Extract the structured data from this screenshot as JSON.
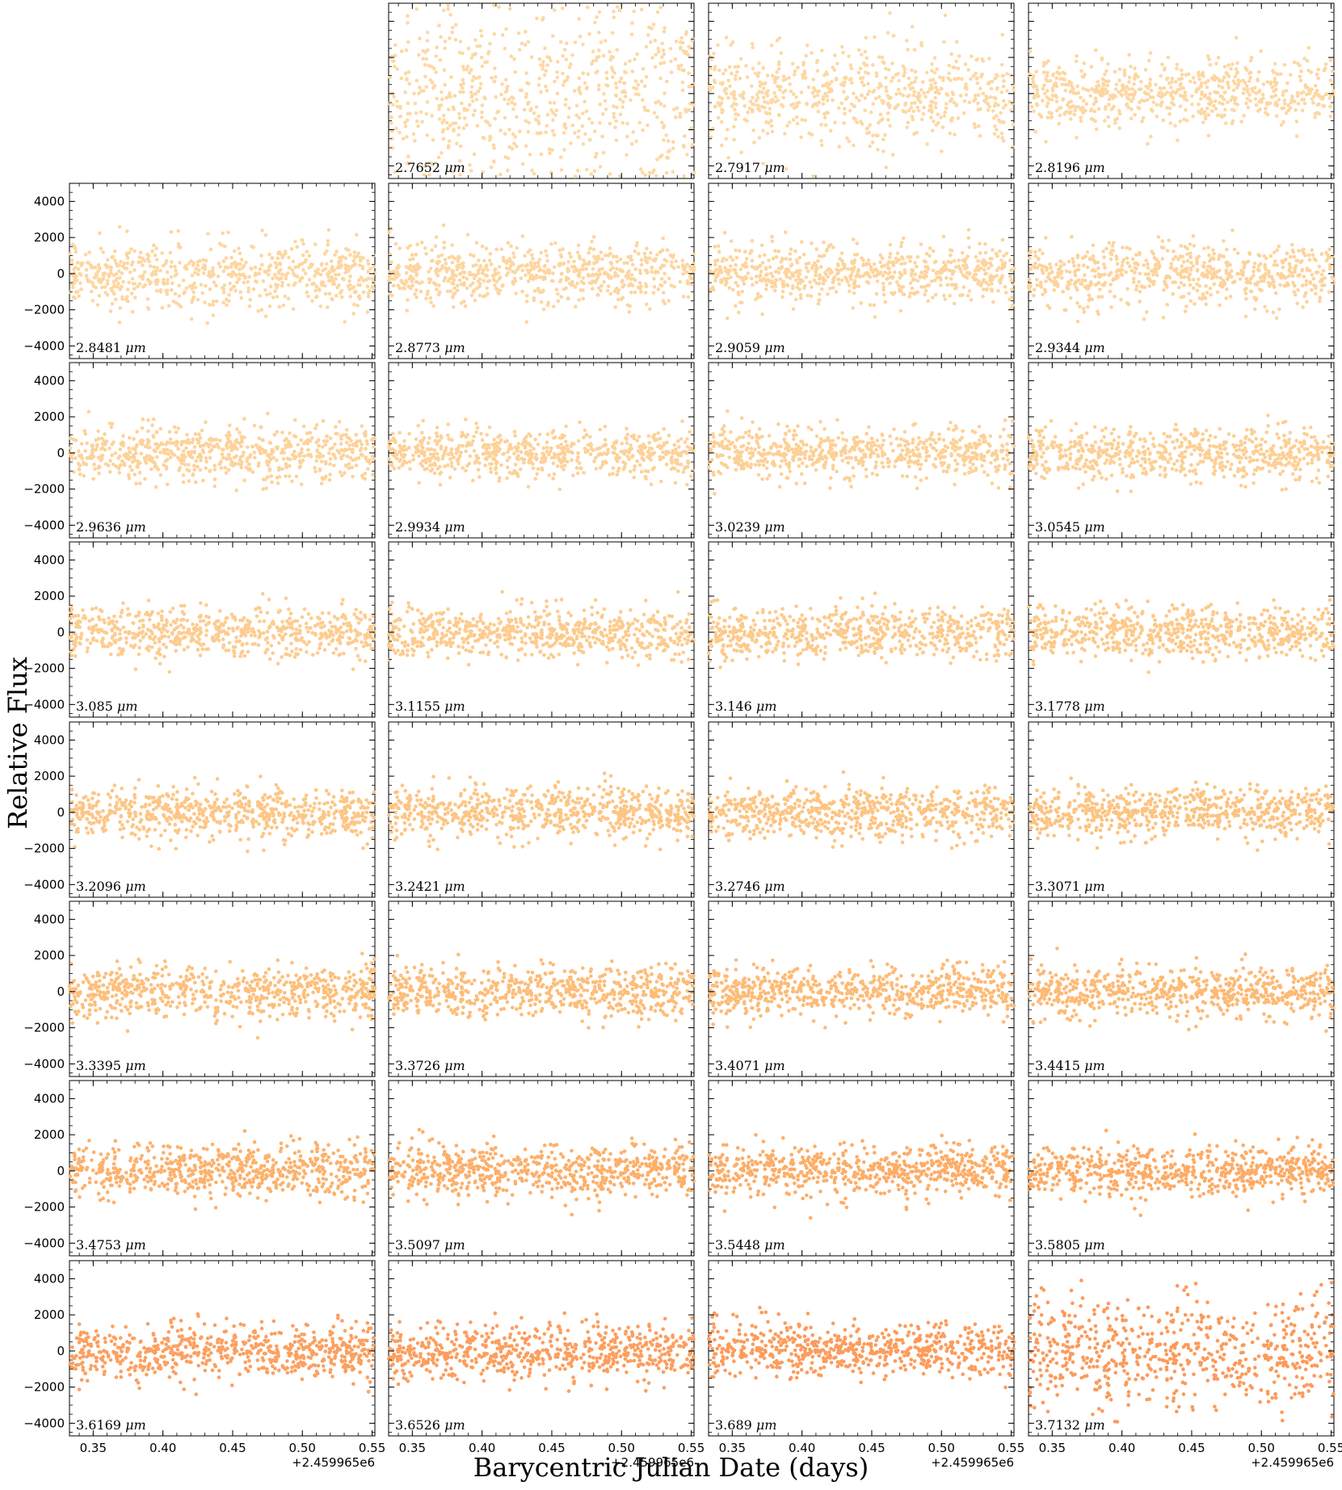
{
  "chart_data": {
    "type": "scatter",
    "layout": "8 rows x 4 columns grid of light curves; top-left panel empty",
    "xlabel": "Barycentric Julian Date (days)",
    "ylabel": "Relative Flux",
    "x_offset_label": "+2.459965e6",
    "xlim": [
      0.333,
      0.552
    ],
    "ylim": [
      -4700,
      5000
    ],
    "xticks": [
      0.35,
      0.4,
      0.45,
      0.5,
      0.55
    ],
    "xtick_labels": [
      "0.35",
      "0.40",
      "0.45",
      "0.50",
      "0.55"
    ],
    "yticks": [
      4000,
      2000,
      0,
      -2000,
      -4000
    ],
    "ytick_labels": [
      "4000",
      "2000",
      "0",
      "−2000",
      "−4000"
    ],
    "wavelength_unit": "μm",
    "panels": [
      {
        "row": 0,
        "col": 1,
        "label": "2.7652",
        "color": "#fdd8a4",
        "scatter_sigma": 2400
      },
      {
        "row": 0,
        "col": 2,
        "label": "2.7917",
        "color": "#fdd8a4",
        "scatter_sigma": 1400
      },
      {
        "row": 0,
        "col": 3,
        "label": "2.8196",
        "color": "#fdd7a2",
        "scatter_sigma": 1000
      },
      {
        "row": 1,
        "col": 0,
        "label": "2.8481",
        "color": "#fdd6a0",
        "scatter_sigma": 900
      },
      {
        "row": 1,
        "col": 1,
        "label": "2.8773",
        "color": "#fdd59f",
        "scatter_sigma": 850
      },
      {
        "row": 1,
        "col": 2,
        "label": "2.9059",
        "color": "#fdd49e",
        "scatter_sigma": 800
      },
      {
        "row": 1,
        "col": 3,
        "label": "2.9344",
        "color": "#fdd39c",
        "scatter_sigma": 800
      },
      {
        "row": 2,
        "col": 0,
        "label": "2.9636",
        "color": "#fdd29a",
        "scatter_sigma": 750
      },
      {
        "row": 2,
        "col": 1,
        "label": "2.9934",
        "color": "#fdd198",
        "scatter_sigma": 700
      },
      {
        "row": 2,
        "col": 2,
        "label": "3.0239",
        "color": "#fdd096",
        "scatter_sigma": 700
      },
      {
        "row": 2,
        "col": 3,
        "label": "3.0545",
        "color": "#fdcf94",
        "scatter_sigma": 700
      },
      {
        "row": 3,
        "col": 0,
        "label": "3.085",
        "color": "#fdcc90",
        "scatter_sigma": 700
      },
      {
        "row": 3,
        "col": 1,
        "label": "3.1155",
        "color": "#fdcb8e",
        "scatter_sigma": 700
      },
      {
        "row": 3,
        "col": 2,
        "label": "3.146",
        "color": "#fdca8c",
        "scatter_sigma": 680
      },
      {
        "row": 3,
        "col": 3,
        "label": "3.1778",
        "color": "#fdc98a",
        "scatter_sigma": 680
      },
      {
        "row": 4,
        "col": 0,
        "label": "3.2096",
        "color": "#fdc686",
        "scatter_sigma": 700
      },
      {
        "row": 4,
        "col": 1,
        "label": "3.2421",
        "color": "#fdc584",
        "scatter_sigma": 700
      },
      {
        "row": 4,
        "col": 2,
        "label": "3.2746",
        "color": "#fdc482",
        "scatter_sigma": 680
      },
      {
        "row": 4,
        "col": 3,
        "label": "3.3071",
        "color": "#fdc380",
        "scatter_sigma": 680
      },
      {
        "row": 5,
        "col": 0,
        "label": "3.3395",
        "color": "#fdbf7c",
        "scatter_sigma": 700
      },
      {
        "row": 5,
        "col": 1,
        "label": "3.3726",
        "color": "#fdbd79",
        "scatter_sigma": 700
      },
      {
        "row": 5,
        "col": 2,
        "label": "3.4071",
        "color": "#fdbb77",
        "scatter_sigma": 680
      },
      {
        "row": 5,
        "col": 3,
        "label": "3.4415",
        "color": "#fdba75",
        "scatter_sigma": 700
      },
      {
        "row": 6,
        "col": 0,
        "label": "3.4753",
        "color": "#fdb16c",
        "scatter_sigma": 700
      },
      {
        "row": 6,
        "col": 1,
        "label": "3.5097",
        "color": "#fdaf6a",
        "scatter_sigma": 700
      },
      {
        "row": 6,
        "col": 2,
        "label": "3.5448",
        "color": "#fdad68",
        "scatter_sigma": 700
      },
      {
        "row": 6,
        "col": 3,
        "label": "3.5805",
        "color": "#fdab66",
        "scatter_sigma": 700
      },
      {
        "row": 7,
        "col": 0,
        "label": "3.6169",
        "color": "#fca060",
        "scatter_sigma": 750
      },
      {
        "row": 7,
        "col": 1,
        "label": "3.6526",
        "color": "#fc9e5e",
        "scatter_sigma": 750
      },
      {
        "row": 7,
        "col": 2,
        "label": "3.689",
        "color": "#fc9c5c",
        "scatter_sigma": 750
      },
      {
        "row": 7,
        "col": 3,
        "label": "3.7132",
        "color": "#fc9a5a",
        "scatter_sigma": 1500
      }
    ]
  }
}
